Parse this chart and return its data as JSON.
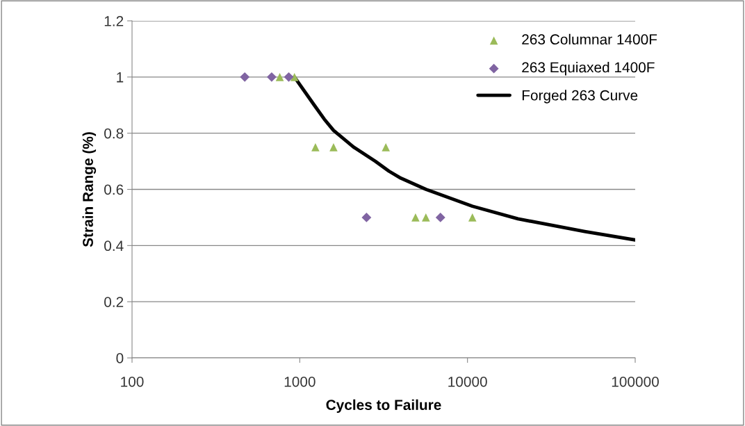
{
  "chart_data": {
    "type": "scatter",
    "xlabel": "Cycles to Failure",
    "ylabel": "Strain Range (%)",
    "log": "x",
    "xlim": [
      100,
      100000
    ],
    "xticks": [
      100,
      1000,
      10000,
      100000
    ],
    "ylim": [
      0,
      1.2
    ],
    "yticks": [
      0,
      0.2,
      0.4,
      0.6,
      0.8,
      1,
      1.2
    ],
    "grid": "y",
    "legend": "top right",
    "series": [
      {
        "name": "263 Columnar 1400F",
        "marker": "triangle",
        "color": "#9bbb59",
        "x": [
          760,
          930,
          1240,
          1590,
          3260,
          4900,
          5650,
          10700
        ],
        "values": [
          1,
          1,
          0.75,
          0.75,
          0.75,
          0.5,
          0.5,
          0.5
        ]
      },
      {
        "name": "263 Equiaxed 1400F",
        "marker": "diamond",
        "color": "#8064a2",
        "x": [
          470,
          680,
          860,
          2500,
          6900
        ],
        "values": [
          1,
          1,
          1,
          0.5,
          0.5
        ]
      },
      {
        "name": "Forged 263 Curve",
        "type": "line",
        "marker": "none",
        "line_style": "solid",
        "color": "#000000",
        "x": [
          930,
          1220,
          1400,
          1590,
          2100,
          2820,
          3400,
          4000,
          5660,
          10700,
          20000,
          50000,
          100000
        ],
        "values": [
          1,
          0.9,
          0.85,
          0.81,
          0.75,
          0.7,
          0.665,
          0.64,
          0.6,
          0.54,
          0.495,
          0.45,
          0.42
        ]
      }
    ]
  }
}
